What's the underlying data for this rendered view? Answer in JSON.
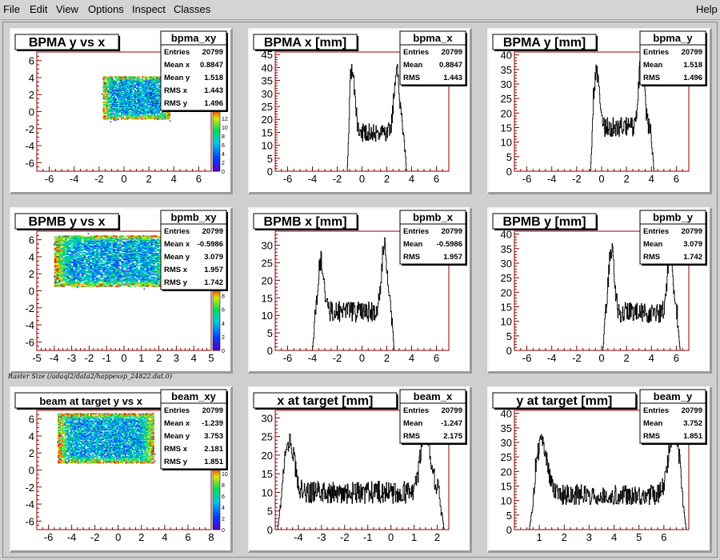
{
  "menu": {
    "file": "File",
    "edit": "Edit",
    "view": "View",
    "options": "Options",
    "inspect": "Inspect",
    "classes": "Classes",
    "help": "Help"
  },
  "footnote": "Raster Size (/adaql2/data2/happexsp_24822.dat.0)",
  "colors": {
    "axis": "#8b0000",
    "hist": "#000000",
    "pad_bg": "#ffffff",
    "canvas_bg": "#cfcfcf"
  },
  "chart_data": [
    {
      "id": "bpma_xy",
      "type": "heatmap",
      "title": "BPMA y vs x",
      "stats_title": "bpma_xy",
      "stats": [
        [
          "Entries",
          "20799"
        ],
        [
          "Mean x",
          "0.8847"
        ],
        [
          "Mean y",
          "1.518"
        ],
        [
          "RMS x",
          "1.443"
        ],
        [
          "RMS y",
          "1.496"
        ]
      ],
      "xlim": [
        -7,
        7
      ],
      "ylim": [
        -7,
        7
      ],
      "xticks": [
        -6,
        -4,
        -2,
        0,
        2,
        4,
        6
      ],
      "yticks": [
        -6,
        -4,
        -2,
        0,
        2,
        4,
        6
      ],
      "region": {
        "x": [
          -1.7,
          3.6
        ],
        "y": [
          -0.9,
          4.1
        ]
      },
      "zticks": [
        0,
        2,
        4,
        6,
        8,
        10,
        12
      ],
      "zmax": 14
    },
    {
      "id": "bpma_x",
      "type": "bar",
      "title": "BPMA x [mm]",
      "stats_title": "bpma_x",
      "stats": [
        [
          "Entries",
          "20799"
        ],
        [
          "Mean",
          "0.8847"
        ],
        [
          "RMS",
          "1.443"
        ]
      ],
      "xlim": [
        -7,
        7
      ],
      "ylim": [
        0,
        46
      ],
      "xticks": [
        -6,
        -4,
        -2,
        0,
        2,
        4,
        6
      ],
      "yticks": [
        0,
        5,
        10,
        15,
        20,
        25,
        30,
        35,
        40,
        45
      ],
      "shape": {
        "support": [
          -1.2,
          3.6
        ],
        "peaks": [
          [
            -0.8,
            40
          ],
          [
            2.8,
            40
          ]
        ],
        "middle": 15,
        "noise": 3.5
      }
    },
    {
      "id": "bpma_y",
      "type": "bar",
      "title": "BPMA y [mm]",
      "stats_title": "bpma_y",
      "stats": [
        [
          "Entries",
          "20799"
        ],
        [
          "Mean",
          "1.518"
        ],
        [
          "RMS",
          "1.496"
        ]
      ],
      "xlim": [
        -7,
        7
      ],
      "ylim": [
        0,
        41
      ],
      "xticks": [
        -6,
        -4,
        -2,
        0,
        2,
        4,
        6
      ],
      "yticks": [
        0,
        5,
        10,
        15,
        20,
        25,
        30,
        35,
        40
      ],
      "shape": {
        "support": [
          -0.9,
          4.2
        ],
        "peaks": [
          [
            -0.4,
            34
          ],
          [
            3.2,
            40
          ]
        ],
        "middle": 15,
        "noise": 3.5
      }
    },
    {
      "id": "bpmb_xy",
      "type": "heatmap",
      "title": "BPMB y vs x",
      "stats_title": "bpmb_xy",
      "stats": [
        [
          "Entries",
          "20799"
        ],
        [
          "Mean x",
          "-0.5986"
        ],
        [
          "Mean y",
          "3.079"
        ],
        [
          "RMS x",
          "1.957"
        ],
        [
          "RMS y",
          "1.742"
        ]
      ],
      "xlim": [
        -5,
        5
      ],
      "ylim": [
        -7,
        7
      ],
      "xticks": [
        -5,
        -4,
        -3,
        -2,
        -1,
        0,
        1,
        2,
        3,
        4,
        5
      ],
      "yticks": [
        -6,
        -4,
        -2,
        0,
        2,
        4,
        6
      ],
      "region": {
        "x": [
          -4.0,
          2.6
        ],
        "y": [
          0.5,
          6.5
        ]
      },
      "zticks": [
        0,
        2,
        4,
        6,
        8
      ],
      "zmax": 9
    },
    {
      "id": "bpmb_x",
      "type": "bar",
      "title": "BPMB x [mm]",
      "stats_title": "bpmb_x",
      "stats": [
        [
          "Entries",
          "20799"
        ],
        [
          "Mean",
          "-0.5986"
        ],
        [
          "RMS",
          "1.957"
        ]
      ],
      "xlim": [
        -7,
        7
      ],
      "ylim": [
        0,
        34
      ],
      "xticks": [
        -6,
        -4,
        -2,
        0,
        2,
        4,
        6
      ],
      "yticks": [
        0,
        5,
        10,
        15,
        20,
        25,
        30
      ],
      "shape": {
        "support": [
          -4.0,
          2.6
        ],
        "peaks": [
          [
            -3.3,
            26
          ],
          [
            1.8,
            30
          ]
        ],
        "middle": 11,
        "noise": 3
      }
    },
    {
      "id": "bpmb_y",
      "type": "bar",
      "title": "BPMB y [mm]",
      "stats_title": "bpmb_y",
      "stats": [
        [
          "Entries",
          "20799"
        ],
        [
          "Mean",
          "3.079"
        ],
        [
          "RMS",
          "1.742"
        ]
      ],
      "xlim": [
        -7,
        7
      ],
      "ylim": [
        0,
        41
      ],
      "xticks": [
        -6,
        -4,
        -2,
        0,
        2,
        4,
        6
      ],
      "yticks": [
        0,
        5,
        10,
        15,
        20,
        25,
        30,
        35,
        40
      ],
      "shape": {
        "support": [
          0.1,
          6.3
        ],
        "peaks": [
          [
            0.8,
            35
          ],
          [
            5.5,
            35
          ]
        ],
        "middle": 13,
        "noise": 3.5
      }
    },
    {
      "id": "beam_xy",
      "type": "heatmap",
      "title": "beam at target y vs x",
      "stats_title": "beam_xy",
      "stats": [
        [
          "Entries",
          "20799"
        ],
        [
          "Mean x",
          "-1.239"
        ],
        [
          "Mean y",
          "3.753"
        ],
        [
          "RMS x",
          "2.181"
        ],
        [
          "RMS y",
          "1.851"
        ]
      ],
      "xlim": [
        -7,
        8
      ],
      "ylim": [
        -7,
        7
      ],
      "xticks": [
        -6,
        -4,
        -2,
        0,
        2,
        4,
        6,
        8
      ],
      "yticks": [
        -6,
        -4,
        -2,
        0,
        2,
        4,
        6
      ],
      "region": {
        "x": [
          -5.2,
          3.0
        ],
        "y": [
          0.8,
          6.6
        ]
      },
      "zticks": [
        0,
        2,
        4,
        6,
        8,
        10
      ],
      "zmax": 11
    },
    {
      "id": "beam_x",
      "type": "bar",
      "title": "x at target [mm]",
      "stats_title": "beam_x",
      "stats": [
        [
          "Entries",
          "20799"
        ],
        [
          "Mean",
          "-1.247"
        ],
        [
          "RMS",
          "2.175"
        ]
      ],
      "xlim": [
        -5,
        2.5
      ],
      "ylim": [
        0,
        32
      ],
      "xticks": [
        -4,
        -3,
        -2,
        -1,
        0,
        1,
        2
      ],
      "yticks": [
        0,
        5,
        10,
        15,
        20,
        25,
        30
      ],
      "shape": {
        "support": [
          -4.9,
          2.3
        ],
        "peaks": [
          [
            -4.4,
            24
          ],
          [
            1.5,
            26
          ]
        ],
        "middle": 10,
        "noise": 3
      }
    },
    {
      "id": "beam_y",
      "type": "bar",
      "title": "y at target [mm]",
      "stats_title": "beam_y",
      "stats": [
        [
          "Entries",
          "20799"
        ],
        [
          "Mean",
          "3.752"
        ],
        [
          "RMS",
          "1.851"
        ]
      ],
      "xlim": [
        0,
        7
      ],
      "ylim": [
        0,
        41
      ],
      "xticks": [
        1,
        2,
        3,
        4,
        5,
        6
      ],
      "yticks": [
        0,
        5,
        10,
        15,
        20,
        25,
        30,
        35,
        40
      ],
      "shape": {
        "support": [
          0.6,
          6.9
        ],
        "peaks": [
          [
            1.1,
            30
          ],
          [
            6.4,
            34
          ]
        ],
        "middle": 12,
        "noise": 3.5
      }
    }
  ]
}
